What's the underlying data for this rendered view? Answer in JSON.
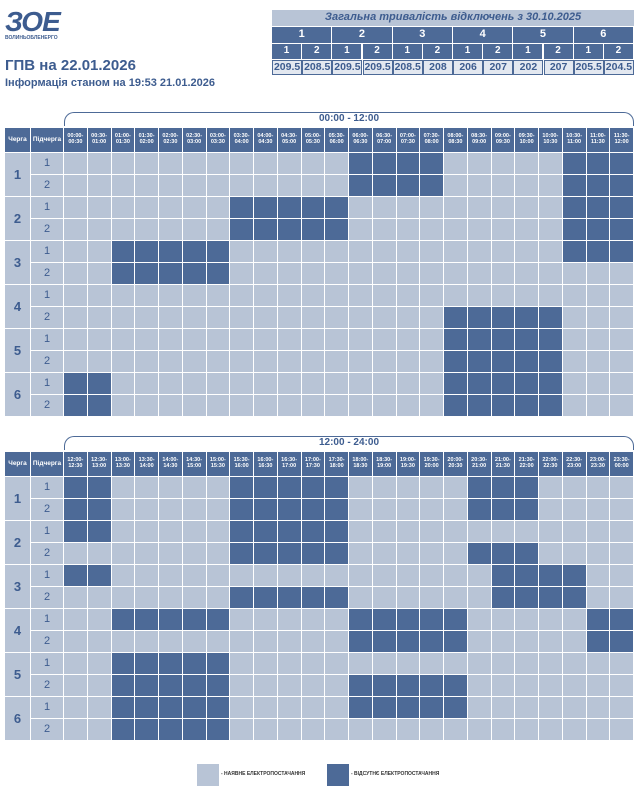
{
  "header": {
    "logo": "ЗОЕ",
    "logo_caption": "ВОЛИНЬОБЛЕНЕРГО",
    "title": "ГПВ на 22.01.2026",
    "subtitle": "Інформація станом на 19:53 21.01.2026"
  },
  "summary": {
    "title": "Загальна тривалість відключень з 30.10.2025",
    "groups": [
      {
        "label": "1",
        "subgroups": [
          {
            "label": "1",
            "value": 209.5
          },
          {
            "label": "2",
            "value": 208.5
          }
        ]
      },
      {
        "label": "2",
        "subgroups": [
          {
            "label": "1",
            "value": 209.5
          },
          {
            "label": "2",
            "value": 209.5
          }
        ]
      },
      {
        "label": "3",
        "subgroups": [
          {
            "label": "1",
            "value": 208.5
          },
          {
            "label": "2",
            "value": 208
          }
        ]
      },
      {
        "label": "4",
        "subgroups": [
          {
            "label": "1",
            "value": 206
          },
          {
            "label": "2",
            "value": 207
          }
        ]
      },
      {
        "label": "5",
        "subgroups": [
          {
            "label": "1",
            "value": 202
          },
          {
            "label": "2",
            "value": 207
          }
        ]
      },
      {
        "label": "6",
        "subgroups": [
          {
            "label": "1",
            "value": 205.5
          },
          {
            "label": "2",
            "value": 204.5
          }
        ]
      }
    ]
  },
  "schedules": [
    {
      "title": "00:00 - 12:00",
      "queue_header": "Черга",
      "subqueue_header": "Підчерга",
      "slots": [
        [
          "00:00-",
          "00:30"
        ],
        [
          "00:30-",
          "01:00"
        ],
        [
          "01:00-",
          "01:30"
        ],
        [
          "01:30-",
          "02:00"
        ],
        [
          "02:00-",
          "02:30"
        ],
        [
          "02:30-",
          "03:00"
        ],
        [
          "03:00-",
          "03:30"
        ],
        [
          "03:30-",
          "04:00"
        ],
        [
          "04:00-",
          "04:30"
        ],
        [
          "04:30-",
          "05:00"
        ],
        [
          "05:00-",
          "05:30"
        ],
        [
          "05:30-",
          "06:00"
        ],
        [
          "06:00-",
          "06:30"
        ],
        [
          "06:30-",
          "07:00"
        ],
        [
          "07:00-",
          "07:30"
        ],
        [
          "07:30-",
          "08:00"
        ],
        [
          "08:00-",
          "08:30"
        ],
        [
          "08:30-",
          "09:00"
        ],
        [
          "09:00-",
          "09:30"
        ],
        [
          "09:30-",
          "10:00"
        ],
        [
          "10:00-",
          "10:30"
        ],
        [
          "10:30-",
          "11:00"
        ],
        [
          "11:00-",
          "11:30"
        ],
        [
          "11:30-",
          "12:00"
        ]
      ],
      "groups": [
        {
          "label": "1",
          "subgroups": [
            {
              "label": "1",
              "cells": [
                0,
                0,
                0,
                0,
                0,
                0,
                0,
                0,
                0,
                0,
                0,
                0,
                1,
                1,
                1,
                1,
                0,
                0,
                0,
                0,
                0,
                1,
                1,
                1
              ]
            },
            {
              "label": "2",
              "cells": [
                0,
                0,
                0,
                0,
                0,
                0,
                0,
                0,
                0,
                0,
                0,
                0,
                1,
                1,
                1,
                1,
                0,
                0,
                0,
                0,
                0,
                1,
                1,
                1
              ]
            }
          ]
        },
        {
          "label": "2",
          "subgroups": [
            {
              "label": "1",
              "cells": [
                0,
                0,
                0,
                0,
                0,
                0,
                0,
                1,
                1,
                1,
                1,
                1,
                0,
                0,
                0,
                0,
                0,
                0,
                0,
                0,
                0,
                1,
                1,
                1
              ]
            },
            {
              "label": "2",
              "cells": [
                0,
                0,
                0,
                0,
                0,
                0,
                0,
                1,
                1,
                1,
                1,
                1,
                0,
                0,
                0,
                0,
                0,
                0,
                0,
                0,
                0,
                1,
                1,
                1
              ]
            }
          ]
        },
        {
          "label": "3",
          "subgroups": [
            {
              "label": "1",
              "cells": [
                0,
                0,
                1,
                1,
                1,
                1,
                1,
                0,
                0,
                0,
                0,
                0,
                0,
                0,
                0,
                0,
                0,
                0,
                0,
                0,
                0,
                1,
                1,
                1
              ]
            },
            {
              "label": "2",
              "cells": [
                0,
                0,
                1,
                1,
                1,
                1,
                1,
                0,
                0,
                0,
                0,
                0,
                0,
                0,
                0,
                0,
                0,
                0,
                0,
                0,
                0,
                0,
                0,
                0
              ]
            }
          ]
        },
        {
          "label": "4",
          "subgroups": [
            {
              "label": "1",
              "cells": [
                0,
                0,
                0,
                0,
                0,
                0,
                0,
                0,
                0,
                0,
                0,
                0,
                0,
                0,
                0,
                0,
                0,
                0,
                0,
                0,
                0,
                0,
                0,
                0
              ]
            },
            {
              "label": "2",
              "cells": [
                0,
                0,
                0,
                0,
                0,
                0,
                0,
                0,
                0,
                0,
                0,
                0,
                0,
                0,
                0,
                0,
                1,
                1,
                1,
                1,
                1,
                0,
                0,
                0
              ]
            }
          ]
        },
        {
          "label": "5",
          "subgroups": [
            {
              "label": "1",
              "cells": [
                0,
                0,
                0,
                0,
                0,
                0,
                0,
                0,
                0,
                0,
                0,
                0,
                0,
                0,
                0,
                0,
                1,
                1,
                1,
                1,
                1,
                0,
                0,
                0
              ]
            },
            {
              "label": "2",
              "cells": [
                0,
                0,
                0,
                0,
                0,
                0,
                0,
                0,
                0,
                0,
                0,
                0,
                0,
                0,
                0,
                0,
                1,
                1,
                1,
                1,
                1,
                0,
                0,
                0
              ]
            }
          ]
        },
        {
          "label": "6",
          "subgroups": [
            {
              "label": "1",
              "cells": [
                1,
                1,
                0,
                0,
                0,
                0,
                0,
                0,
                0,
                0,
                0,
                0,
                0,
                0,
                0,
                0,
                1,
                1,
                1,
                1,
                1,
                0,
                0,
                0
              ]
            },
            {
              "label": "2",
              "cells": [
                1,
                1,
                0,
                0,
                0,
                0,
                0,
                0,
                0,
                0,
                0,
                0,
                0,
                0,
                0,
                0,
                1,
                1,
                1,
                1,
                1,
                0,
                0,
                0
              ]
            }
          ]
        }
      ]
    },
    {
      "title": "12:00 - 24:00",
      "queue_header": "Черга",
      "subqueue_header": "Підчерга",
      "slots": [
        [
          "12:00-",
          "12:30"
        ],
        [
          "12:30-",
          "13:00"
        ],
        [
          "13:00-",
          "13:30"
        ],
        [
          "13:30-",
          "14:00"
        ],
        [
          "14:00-",
          "14:30"
        ],
        [
          "14:30-",
          "15:00"
        ],
        [
          "15:00-",
          "15:30"
        ],
        [
          "15:30-",
          "16:00"
        ],
        [
          "16:00-",
          "16:30"
        ],
        [
          "16:30-",
          "17:00"
        ],
        [
          "17:00-",
          "17:30"
        ],
        [
          "17:30-",
          "18:00"
        ],
        [
          "18:00-",
          "18:30"
        ],
        [
          "18:30-",
          "19:00"
        ],
        [
          "19:00-",
          "19:30"
        ],
        [
          "19:30-",
          "20:00"
        ],
        [
          "20:00-",
          "20:30"
        ],
        [
          "20:30-",
          "21:00"
        ],
        [
          "21:00-",
          "21:30"
        ],
        [
          "21:30-",
          "22:00"
        ],
        [
          "22:00-",
          "22:30"
        ],
        [
          "22:30-",
          "23:00"
        ],
        [
          "23:00-",
          "23:30"
        ],
        [
          "23:30-",
          "00:00"
        ]
      ],
      "groups": [
        {
          "label": "1",
          "subgroups": [
            {
              "label": "1",
              "cells": [
                1,
                1,
                0,
                0,
                0,
                0,
                0,
                1,
                1,
                1,
                1,
                1,
                0,
                0,
                0,
                0,
                0,
                1,
                1,
                1,
                0,
                0,
                0,
                0
              ]
            },
            {
              "label": "2",
              "cells": [
                1,
                1,
                0,
                0,
                0,
                0,
                0,
                1,
                1,
                1,
                1,
                1,
                0,
                0,
                0,
                0,
                0,
                1,
                1,
                1,
                0,
                0,
                0,
                0
              ]
            }
          ]
        },
        {
          "label": "2",
          "subgroups": [
            {
              "label": "1",
              "cells": [
                1,
                1,
                0,
                0,
                0,
                0,
                0,
                1,
                1,
                1,
                1,
                1,
                0,
                0,
                0,
                0,
                0,
                0,
                0,
                0,
                0,
                0,
                0,
                0
              ]
            },
            {
              "label": "2",
              "cells": [
                0,
                0,
                0,
                0,
                0,
                0,
                0,
                1,
                1,
                1,
                1,
                1,
                0,
                0,
                0,
                0,
                0,
                1,
                1,
                1,
                0,
                0,
                0,
                0
              ]
            }
          ]
        },
        {
          "label": "3",
          "subgroups": [
            {
              "label": "1",
              "cells": [
                1,
                1,
                0,
                0,
                0,
                0,
                0,
                0,
                0,
                0,
                0,
                0,
                0,
                0,
                0,
                0,
                0,
                0,
                1,
                1,
                1,
                1,
                0,
                0
              ]
            },
            {
              "label": "2",
              "cells": [
                0,
                0,
                0,
                0,
                0,
                0,
                0,
                1,
                1,
                1,
                1,
                1,
                0,
                0,
                0,
                0,
                0,
                0,
                1,
                1,
                1,
                1,
                0,
                0
              ]
            }
          ]
        },
        {
          "label": "4",
          "subgroups": [
            {
              "label": "1",
              "cells": [
                0,
                0,
                1,
                1,
                1,
                1,
                1,
                0,
                0,
                0,
                0,
                0,
                1,
                1,
                1,
                1,
                1,
                0,
                0,
                0,
                0,
                0,
                1,
                1
              ]
            },
            {
              "label": "2",
              "cells": [
                0,
                0,
                0,
                0,
                0,
                0,
                0,
                0,
                0,
                0,
                0,
                0,
                1,
                1,
                1,
                1,
                1,
                0,
                0,
                0,
                0,
                0,
                1,
                1
              ]
            }
          ]
        },
        {
          "label": "5",
          "subgroups": [
            {
              "label": "1",
              "cells": [
                0,
                0,
                1,
                1,
                1,
                1,
                1,
                0,
                0,
                0,
                0,
                0,
                0,
                0,
                0,
                0,
                0,
                0,
                0,
                0,
                0,
                0,
                0,
                0
              ]
            },
            {
              "label": "2",
              "cells": [
                0,
                0,
                1,
                1,
                1,
                1,
                1,
                0,
                0,
                0,
                0,
                0,
                1,
                1,
                1,
                1,
                1,
                0,
                0,
                0,
                0,
                0,
                0,
                0
              ]
            }
          ]
        },
        {
          "label": "6",
          "subgroups": [
            {
              "label": "1",
              "cells": [
                0,
                0,
                1,
                1,
                1,
                1,
                1,
                0,
                0,
                0,
                0,
                0,
                1,
                1,
                1,
                1,
                1,
                0,
                0,
                0,
                0,
                0,
                0,
                0
              ]
            },
            {
              "label": "2",
              "cells": [
                0,
                0,
                1,
                1,
                1,
                1,
                1,
                0,
                0,
                0,
                0,
                0,
                0,
                0,
                0,
                0,
                0,
                0,
                0,
                0,
                0,
                0,
                0,
                0
              ]
            }
          ]
        }
      ]
    }
  ],
  "legend": [
    {
      "label": "- НАЯВНЕ ЕЛЕКТРОПОСТАЧАННЯ",
      "color": "#b8c4d6"
    },
    {
      "label": "- ВІДСУТНЄ ЕЛЕКТРОПОСТАЧАННЯ",
      "color": "#4d6a97"
    }
  ]
}
